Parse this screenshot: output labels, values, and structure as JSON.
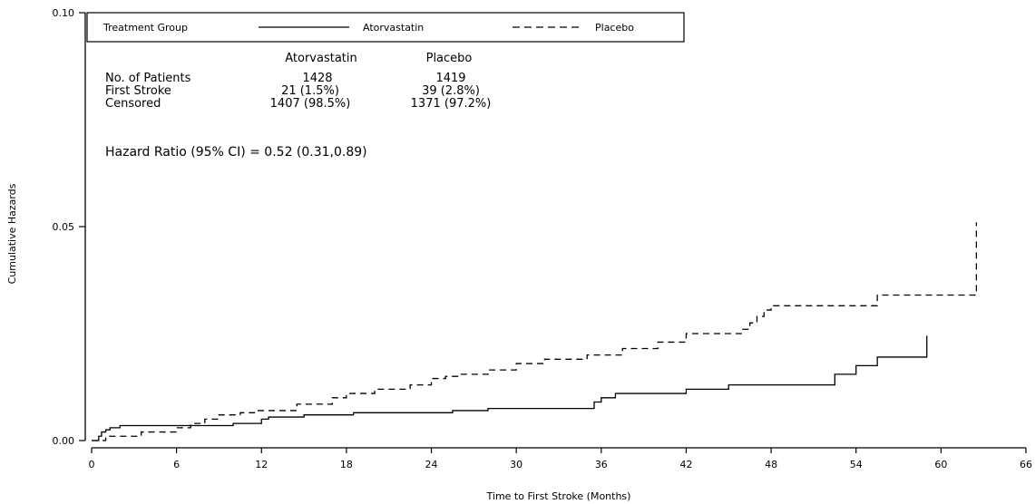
{
  "chart_data": {
    "type": "line",
    "xlabel": "Time to First Stroke (Months)",
    "ylabel": "Cumulative Hazards",
    "xlim": [
      0,
      66
    ],
    "ylim": [
      0,
      0.1
    ],
    "xticks": [
      0,
      6,
      12,
      18,
      24,
      30,
      36,
      42,
      48,
      54,
      60,
      66
    ],
    "yticks": [
      0,
      0.05,
      0.1
    ],
    "ytick_labels": [
      "0.00",
      "0.05",
      "0.10"
    ],
    "grid": false,
    "legend": {
      "placement": "top",
      "title": "Treatment Group",
      "entries": [
        {
          "label": "Atorvastatin",
          "style": "solid"
        },
        {
          "label": "Placebo",
          "style": "dashed"
        }
      ]
    },
    "stats_table": {
      "columns": [
        "Atorvastatin",
        "Placebo"
      ],
      "rows": [
        {
          "label": "No. of Patients",
          "values": [
            "1428",
            "1419"
          ]
        },
        {
          "label": "First Stroke",
          "values": [
            "21 (1.5%)",
            "39 (2.8%)"
          ]
        },
        {
          "label": "Censored",
          "values": [
            "1407 (98.5%)",
            "1371 (97.2%)"
          ]
        }
      ]
    },
    "annotation": "Hazard Ratio (95% CI) = 0.52 (0.31,0.89)",
    "series": [
      {
        "name": "Atorvastatin",
        "style": "solid",
        "color": "#000000",
        "points": [
          [
            0,
            0
          ],
          [
            0.5,
            0.001
          ],
          [
            0.7,
            0.002
          ],
          [
            1.0,
            0.0025
          ],
          [
            1.3,
            0.003
          ],
          [
            2.0,
            0.0035
          ],
          [
            6.0,
            0.0035
          ],
          [
            10.0,
            0.004
          ],
          [
            12.0,
            0.005
          ],
          [
            12.5,
            0.0055
          ],
          [
            15.0,
            0.006
          ],
          [
            18.5,
            0.0065
          ],
          [
            24.0,
            0.0065
          ],
          [
            25.5,
            0.007
          ],
          [
            28.0,
            0.0075
          ],
          [
            35.5,
            0.009
          ],
          [
            36.0,
            0.01
          ],
          [
            37.0,
            0.011
          ],
          [
            38.0,
            0.011
          ],
          [
            42.0,
            0.012
          ],
          [
            45.0,
            0.013
          ],
          [
            52.5,
            0.0155
          ],
          [
            54.0,
            0.0175
          ],
          [
            55.5,
            0.0195
          ],
          [
            59.0,
            0.0245
          ]
        ]
      },
      {
        "name": "Placebo",
        "style": "dashed",
        "color": "#000000",
        "points": [
          [
            0,
            0
          ],
          [
            1.0,
            0.001
          ],
          [
            3.5,
            0.002
          ],
          [
            6.0,
            0.003
          ],
          [
            7.0,
            0.004
          ],
          [
            8.0,
            0.005
          ],
          [
            9.0,
            0.006
          ],
          [
            10.5,
            0.0065
          ],
          [
            11.5,
            0.007
          ],
          [
            14.5,
            0.0085
          ],
          [
            17.0,
            0.01
          ],
          [
            18.0,
            0.011
          ],
          [
            20.0,
            0.012
          ],
          [
            22.5,
            0.013
          ],
          [
            24.0,
            0.0145
          ],
          [
            25.0,
            0.015
          ],
          [
            26.0,
            0.0155
          ],
          [
            28.0,
            0.0165
          ],
          [
            30.0,
            0.018
          ],
          [
            32.0,
            0.019
          ],
          [
            35.0,
            0.02
          ],
          [
            37.5,
            0.0215
          ],
          [
            40.0,
            0.023
          ],
          [
            42.0,
            0.025
          ],
          [
            46.0,
            0.026
          ],
          [
            46.5,
            0.0275
          ],
          [
            47.0,
            0.029
          ],
          [
            47.5,
            0.0305
          ],
          [
            48.0,
            0.0315
          ],
          [
            55.5,
            0.034
          ],
          [
            62.5,
            0.051
          ]
        ]
      }
    ]
  }
}
